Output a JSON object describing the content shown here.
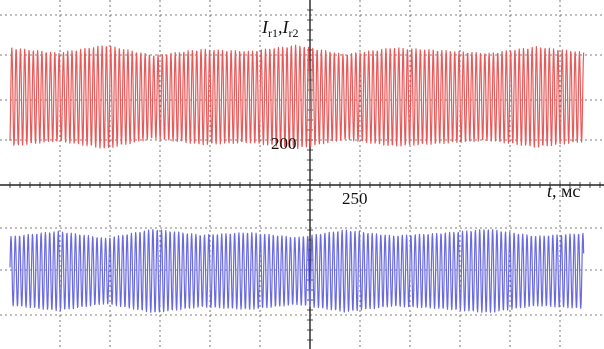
{
  "chart_data": {
    "type": "line",
    "grid": true,
    "ylabel_main": "I",
    "ylabel_sub_1": "r1",
    "ylabel_sep": ",",
    "ylabel_sub_2": "r2",
    "ylabel_main_2": "I",
    "xlabel_var": "t",
    "xlabel_unit": ", мс",
    "x_ticks": [
      "250"
    ],
    "y_ticks": [
      "200"
    ],
    "colors": {
      "series_1": "#e85a5a",
      "series_2": "#6a6ae0",
      "grid": "#555555",
      "axis": "#222222"
    },
    "series": [
      {
        "name": "I_r1",
        "color": "#e85a5a",
        "amplitude_envelope": [
          0.95,
          0.85,
          1.0,
          0.8,
          0.92,
          0.88,
          1.0,
          0.82,
          0.95,
          0.9,
          0.84,
          0.97,
          0.86
        ]
      },
      {
        "name": "I_r2",
        "color": "#6a6ae0",
        "amplitude_envelope": [
          0.82,
          0.95,
          0.78,
          1.0,
          0.86,
          0.92,
          0.8,
          0.98,
          0.84,
          0.9,
          1.0,
          0.83,
          0.9
        ]
      }
    ]
  }
}
